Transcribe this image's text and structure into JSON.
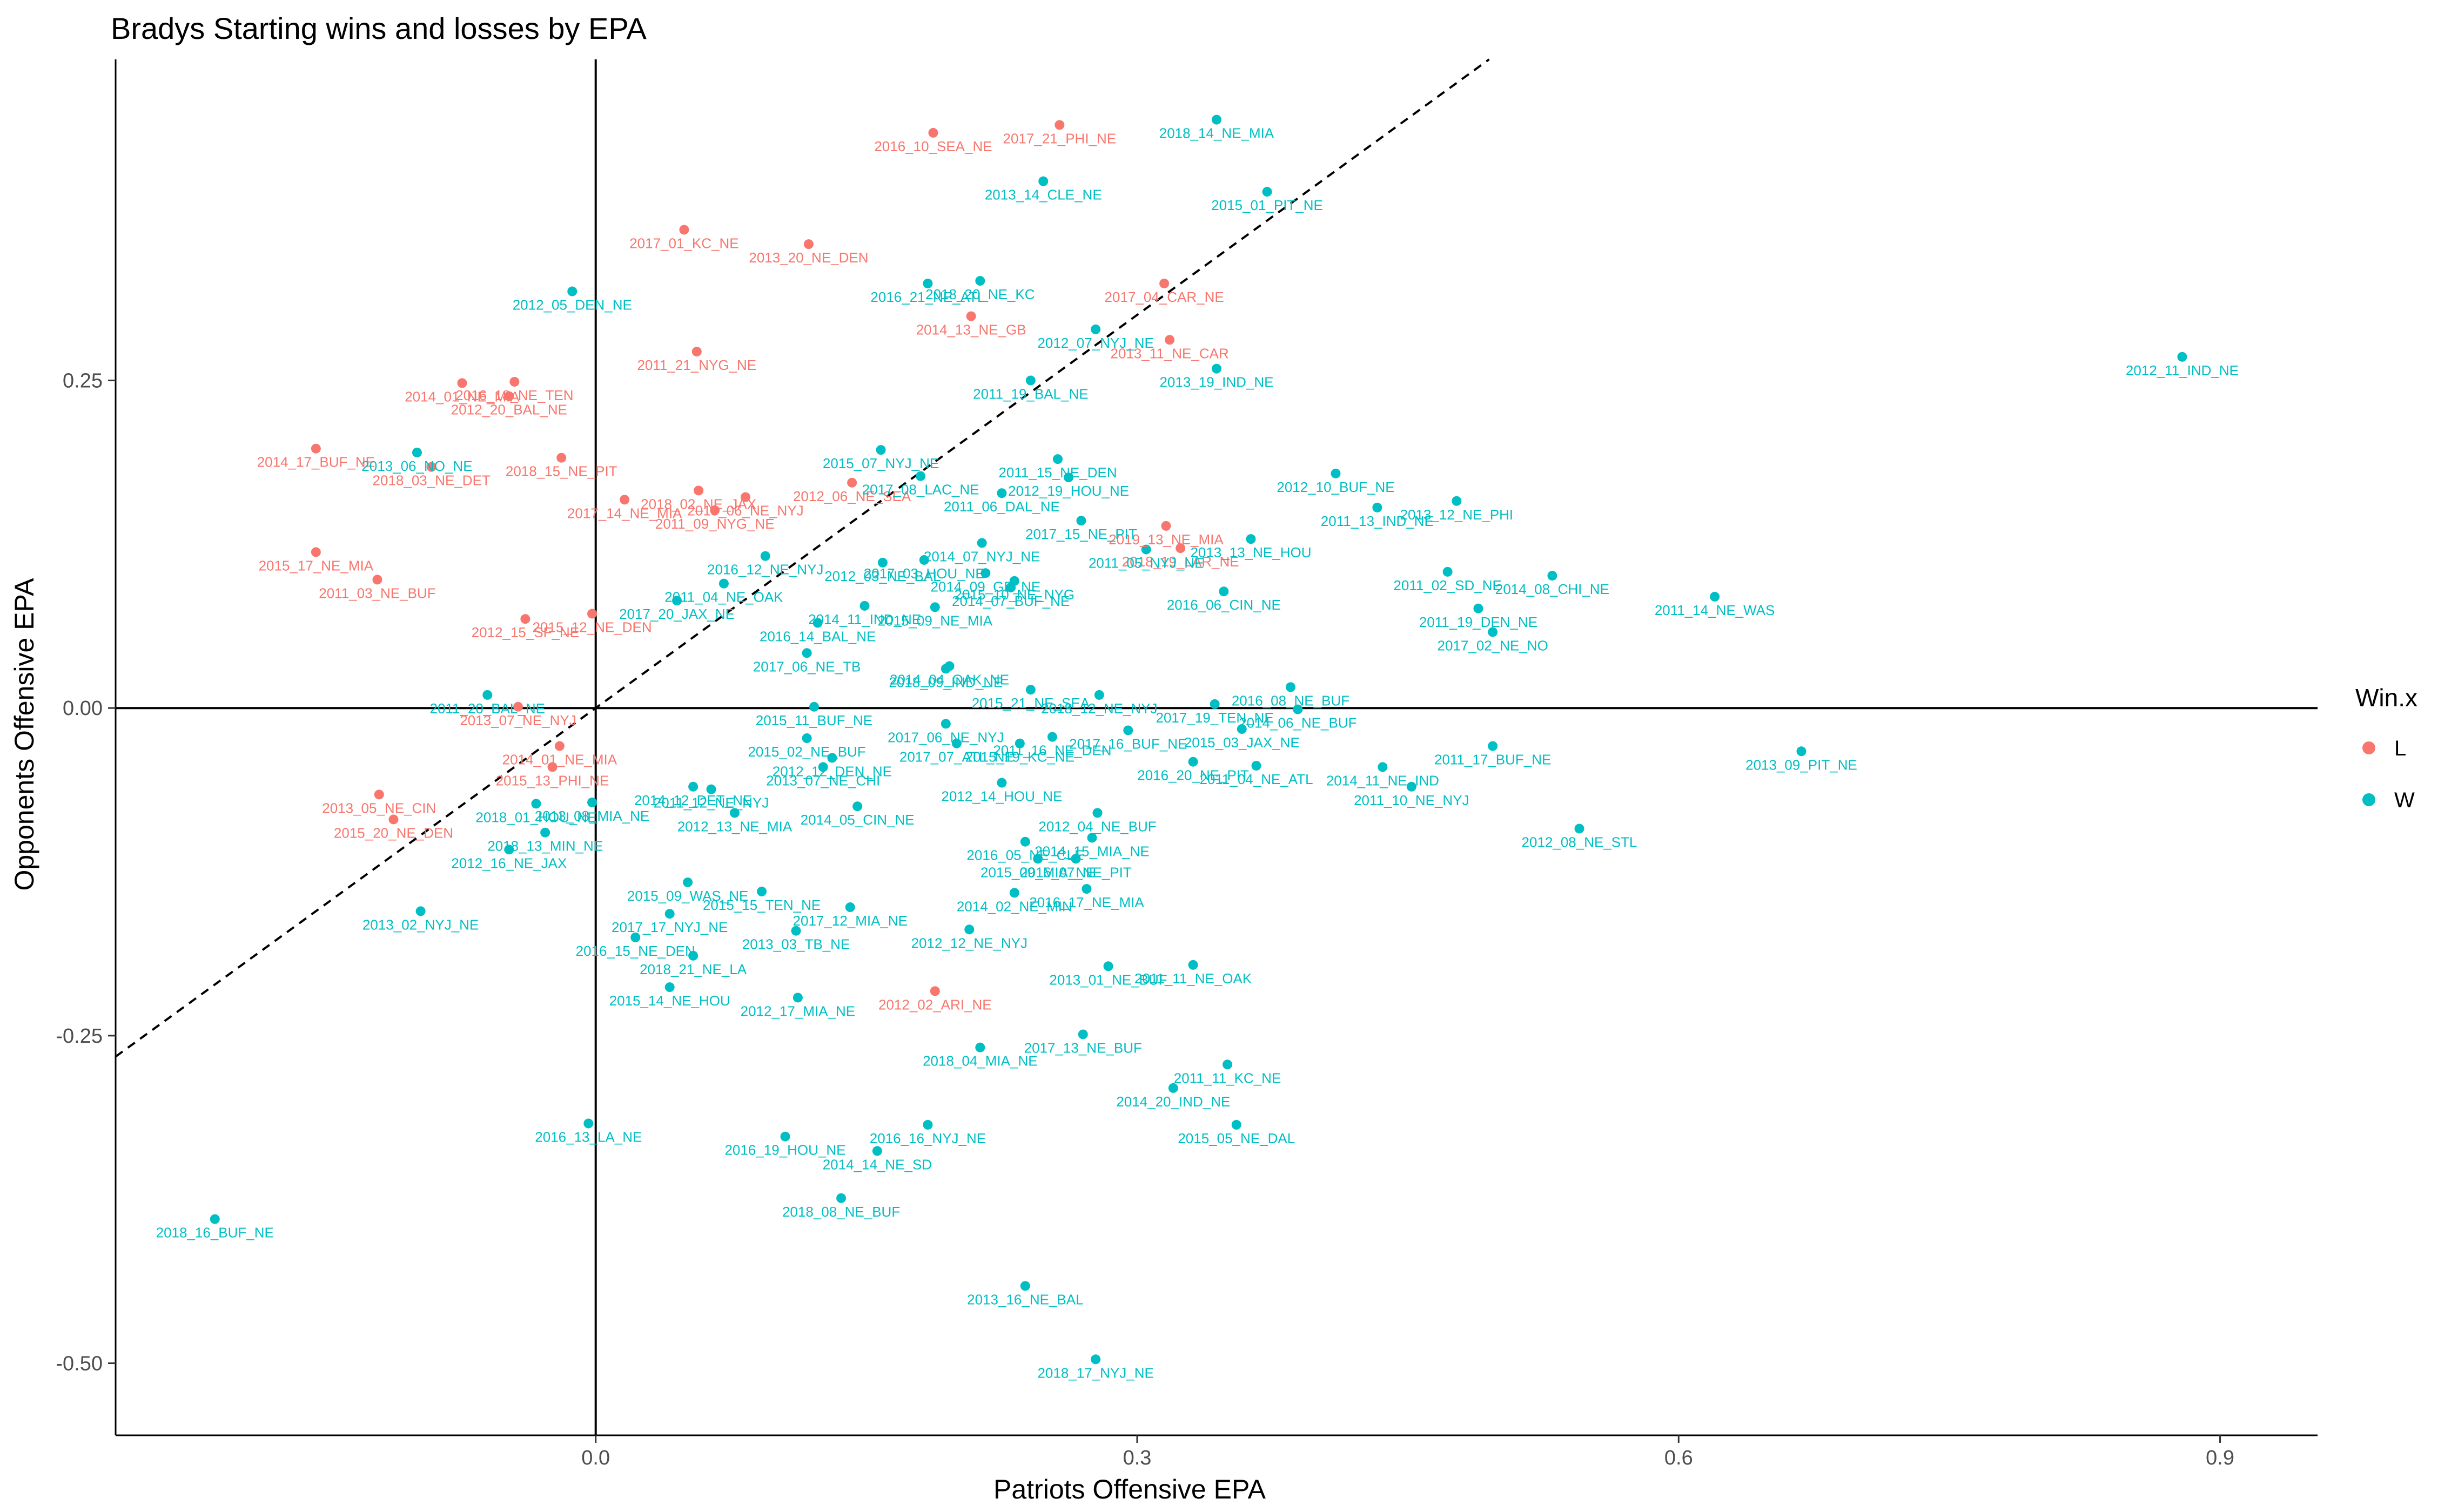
{
  "chart_data": {
    "type": "scatter",
    "title": "Bradys Starting wins and losses by EPA",
    "xlabel": "Patriots Offensive EPA",
    "ylabel": "Opponents Offensive EPA",
    "xlim": [
      -0.266,
      0.954
    ],
    "ylim": [
      -0.555,
      0.495
    ],
    "x_ticks": [
      0.0,
      0.3,
      0.6,
      0.9
    ],
    "x_tick_labels": [
      "0.0",
      "0.3",
      "0.6",
      "0.9"
    ],
    "y_ticks": [
      -0.5,
      -0.25,
      0.0,
      0.25
    ],
    "y_tick_labels": [
      "-0.50",
      "-0.25",
      "0.00",
      "0.25"
    ],
    "grid": false,
    "reference_lines": {
      "vertical_x": 0,
      "horizontal_y": 0,
      "diagonal": "y = x (dashed)"
    },
    "legend": {
      "title": "Win.x",
      "position": "right",
      "entries": [
        {
          "key": "L",
          "label": "L",
          "color": "#F8766D"
        },
        {
          "key": "W",
          "label": "W",
          "color": "#00BFC4"
        }
      ]
    },
    "points": [
      {
        "label": "2016_10_SEA_NE",
        "x": 0.187,
        "y": 0.439,
        "group": "L"
      },
      {
        "label": "2017_21_PHI_NE",
        "x": 0.257,
        "y": 0.445,
        "group": "L"
      },
      {
        "label": "2017_01_KC_NE",
        "x": 0.049,
        "y": 0.365,
        "group": "L"
      },
      {
        "label": "2013_20_NE_DEN",
        "x": 0.118,
        "y": 0.354,
        "group": "L"
      },
      {
        "label": "2017_04_CAR_NE",
        "x": 0.315,
        "y": 0.324,
        "group": "L"
      },
      {
        "label": "2014_13_NE_GB",
        "x": 0.208,
        "y": 0.299,
        "group": "L"
      },
      {
        "label": "2013_11_NE_CAR",
        "x": 0.318,
        "y": 0.281,
        "group": "L"
      },
      {
        "label": "2011_21_NYG_NE",
        "x": 0.056,
        "y": 0.272,
        "group": "L"
      },
      {
        "label": "2014_01_NE_MIA",
        "x": -0.074,
        "y": 0.248,
        "group": "L"
      },
      {
        "label": "2016_18_NE_TEN",
        "x": -0.045,
        "y": 0.249,
        "group": "L"
      },
      {
        "label": "2012_20_BAL_NE",
        "x": -0.048,
        "y": 0.238,
        "group": "L"
      },
      {
        "label": "2014_17_BUF_NE",
        "x": -0.155,
        "y": 0.198,
        "group": "L"
      },
      {
        "label": "2018_03_NE_DET",
        "x": -0.091,
        "y": 0.184,
        "group": "L"
      },
      {
        "label": "2018_15_NE_PIT",
        "x": -0.019,
        "y": 0.191,
        "group": "L"
      },
      {
        "label": "2012_06_NE_SEA",
        "x": 0.142,
        "y": 0.172,
        "group": "L"
      },
      {
        "label": "2017_14_NE_MIA",
        "x": 0.016,
        "y": 0.159,
        "group": "L"
      },
      {
        "label": "2018_02_NE_JAX",
        "x": 0.057,
        "y": 0.166,
        "group": "L"
      },
      {
        "label": "2013_06_NE_NYJ",
        "x": 0.083,
        "y": 0.161,
        "group": "L"
      },
      {
        "label": "2011_09_NYG_NE",
        "x": 0.066,
        "y": 0.151,
        "group": "L"
      },
      {
        "label": "2019_13_NE_MIA",
        "x": 0.316,
        "y": 0.139,
        "group": "L"
      },
      {
        "label": "2018_19_LAR_NE",
        "x": 0.324,
        "y": 0.122,
        "group": "L"
      },
      {
        "label": "2015_17_NE_MIA",
        "x": -0.155,
        "y": 0.119,
        "group": "L"
      },
      {
        "label": "2011_03_NE_BUF",
        "x": -0.121,
        "y": 0.098,
        "group": "L"
      },
      {
        "label": "2012_15_SF_NE",
        "x": -0.039,
        "y": 0.068,
        "group": "L"
      },
      {
        "label": "2015_12_NE_DEN",
        "x": -0.002,
        "y": 0.072,
        "group": "L"
      },
      {
        "label": "2013_07_NE_NYJ",
        "x": -0.043,
        "y": 0.001,
        "group": "L"
      },
      {
        "label": "2014_01_NE_MIA",
        "x": -0.02,
        "y": -0.029,
        "group": "L"
      },
      {
        "label": "2015_13_PHI_NE",
        "x": -0.024,
        "y": -0.045,
        "group": "L"
      },
      {
        "label": "2013_05_NE_CIN",
        "x": -0.12,
        "y": -0.066,
        "group": "L"
      },
      {
        "label": "2015_20_NE_DEN",
        "x": -0.112,
        "y": -0.085,
        "group": "L"
      },
      {
        "label": "2012_02_ARI_NE",
        "x": 0.188,
        "y": -0.216,
        "group": "L"
      },
      {
        "label": "2018_14_NE_MIA",
        "x": 0.344,
        "y": 0.449,
        "group": "W"
      },
      {
        "label": "2013_14_CLE_NE",
        "x": 0.248,
        "y": 0.402,
        "group": "W"
      },
      {
        "label": "2015_01_PIT_NE",
        "x": 0.372,
        "y": 0.394,
        "group": "W"
      },
      {
        "label": "2012_05_DEN_NE",
        "x": -0.013,
        "y": 0.318,
        "group": "W"
      },
      {
        "label": "2016_21_NE_ATL",
        "x": 0.184,
        "y": 0.324,
        "group": "W"
      },
      {
        "label": "2018_20_NE_KC",
        "x": 0.213,
        "y": 0.326,
        "group": "W"
      },
      {
        "label": "2012_07_NYJ_NE",
        "x": 0.277,
        "y": 0.289,
        "group": "W"
      },
      {
        "label": "2013_19_IND_NE",
        "x": 0.344,
        "y": 0.259,
        "group": "W"
      },
      {
        "label": "2011_19_BAL_NE",
        "x": 0.241,
        "y": 0.25,
        "group": "W"
      },
      {
        "label": "2012_11_IND_NE",
        "x": 0.879,
        "y": 0.268,
        "group": "W"
      },
      {
        "label": "2013_06_NO_NE",
        "x": -0.099,
        "y": 0.195,
        "group": "W"
      },
      {
        "label": "2015_07_NYJ_NE",
        "x": 0.158,
        "y": 0.197,
        "group": "W"
      },
      {
        "label": "2011_15_NE_DEN",
        "x": 0.256,
        "y": 0.19,
        "group": "W"
      },
      {
        "label": "2017_08_LAC_NE",
        "x": 0.18,
        "y": 0.177,
        "group": "W"
      },
      {
        "label": "2012_19_HOU_NE",
        "x": 0.262,
        "y": 0.176,
        "group": "W"
      },
      {
        "label": "2011_06_DAL_NE",
        "x": 0.225,
        "y": 0.164,
        "group": "W"
      },
      {
        "label": "2012_10_BUF_NE",
        "x": 0.41,
        "y": 0.179,
        "group": "W"
      },
      {
        "label": "2011_13_IND_NE",
        "x": 0.433,
        "y": 0.153,
        "group": "W"
      },
      {
        "label": "2013_12_NE_PHI",
        "x": 0.477,
        "y": 0.158,
        "group": "W"
      },
      {
        "label": "2017_15_NE_PIT",
        "x": 0.269,
        "y": 0.143,
        "group": "W"
      },
      {
        "label": "2014_07_NYJ_NE",
        "x": 0.214,
        "y": 0.126,
        "group": "W"
      },
      {
        "label": "2011_05_NYJ_NE",
        "x": 0.305,
        "y": 0.121,
        "group": "W"
      },
      {
        "label": "2013_13_NE_HOU",
        "x": 0.363,
        "y": 0.129,
        "group": "W"
      },
      {
        "label": "2016_12_NE_NYJ",
        "x": 0.094,
        "y": 0.116,
        "group": "W"
      },
      {
        "label": "2017_03_HOU_NE",
        "x": 0.182,
        "y": 0.113,
        "group": "W"
      },
      {
        "label": "2012_03_NE_BAL",
        "x": 0.159,
        "y": 0.111,
        "group": "W"
      },
      {
        "label": "2014_09_GB_NE",
        "x": 0.216,
        "y": 0.103,
        "group": "W"
      },
      {
        "label": "2015_10_NE_NYG",
        "x": 0.232,
        "y": 0.097,
        "group": "W"
      },
      {
        "label": "2014_07_BUF_NE",
        "x": 0.23,
        "y": 0.092,
        "group": "W"
      },
      {
        "label": "2011_02_SD_NE",
        "x": 0.472,
        "y": 0.104,
        "group": "W"
      },
      {
        "label": "2014_08_CHI_NE",
        "x": 0.53,
        "y": 0.101,
        "group": "W"
      },
      {
        "label": "2011_19_DEN_NE",
        "x": 0.489,
        "y": 0.076,
        "group": "W"
      },
      {
        "label": "2017_02_NE_NO",
        "x": 0.497,
        "y": 0.058,
        "group": "W"
      },
      {
        "label": "2011_14_NE_WAS",
        "x": 0.62,
        "y": 0.085,
        "group": "W"
      },
      {
        "label": "2016_06_CIN_NE",
        "x": 0.348,
        "y": 0.089,
        "group": "W"
      },
      {
        "label": "2011_04_NE_OAK",
        "x": 0.071,
        "y": 0.095,
        "group": "W"
      },
      {
        "label": "2017_20_JAX_NE",
        "x": 0.045,
        "y": 0.082,
        "group": "W"
      },
      {
        "label": "2015_09_NE_MIA",
        "x": 0.188,
        "y": 0.077,
        "group": "W"
      },
      {
        "label": "2014_11_IND_NE",
        "x": 0.149,
        "y": 0.078,
        "group": "W"
      },
      {
        "label": "2016_14_BAL_NE",
        "x": 0.123,
        "y": 0.065,
        "group": "W"
      },
      {
        "label": "2017_06_NE_TB",
        "x": 0.117,
        "y": 0.042,
        "group": "W"
      },
      {
        "label": "2018_09_IND_NE",
        "x": 0.194,
        "y": 0.03,
        "group": "W"
      },
      {
        "label": "2014_04_OAK_NE",
        "x": 0.196,
        "y": 0.032,
        "group": "W"
      },
      {
        "label": "2015_21_NE_SEA",
        "x": 0.241,
        "y": 0.014,
        "group": "W"
      },
      {
        "label": "2018_12_NE_NYJ",
        "x": 0.279,
        "y": 0.01,
        "group": "W"
      },
      {
        "label": "2016_08_NE_BUF",
        "x": 0.385,
        "y": 0.016,
        "group": "W"
      },
      {
        "label": "2017_19_TEN_NE",
        "x": 0.343,
        "y": 0.003,
        "group": "W"
      },
      {
        "label": "2014_06_NE_BUF",
        "x": 0.389,
        "y": -0.001,
        "group": "W"
      },
      {
        "label": "2011_20_BAL_NE",
        "x": -0.06,
        "y": 0.01,
        "group": "W"
      },
      {
        "label": "2015_11_BUF_NE",
        "x": 0.121,
        "y": 0.001,
        "group": "W"
      },
      {
        "label": "2017_06_NE_NYJ",
        "x": 0.194,
        "y": -0.012,
        "group": "W"
      },
      {
        "label": "2015_03_JAX_NE",
        "x": 0.358,
        "y": -0.016,
        "group": "W"
      },
      {
        "label": "2017_16_BUF_NE",
        "x": 0.295,
        "y": -0.017,
        "group": "W"
      },
      {
        "label": "2011_16_NE_DEN",
        "x": 0.253,
        "y": -0.022,
        "group": "W"
      },
      {
        "label": "2015_19_KC_NE",
        "x": 0.235,
        "y": -0.027,
        "group": "W"
      },
      {
        "label": "2017_07_ATL_NE",
        "x": 0.2,
        "y": -0.027,
        "group": "W"
      },
      {
        "label": "2015_02_NE_BUF",
        "x": 0.117,
        "y": -0.023,
        "group": "W"
      },
      {
        "label": "2011_17_BUF_NE",
        "x": 0.497,
        "y": -0.029,
        "group": "W"
      },
      {
        "label": "2013_09_PIT_NE",
        "x": 0.668,
        "y": -0.033,
        "group": "W"
      },
      {
        "label": "2012_12_DEN_NE",
        "x": 0.131,
        "y": -0.038,
        "group": "W"
      },
      {
        "label": "2013_07_NE_CHI",
        "x": 0.126,
        "y": -0.045,
        "group": "W"
      },
      {
        "label": "2016_20_NE_PIT",
        "x": 0.331,
        "y": -0.041,
        "group": "W"
      },
      {
        "label": "2011_04_NE_ATL",
        "x": 0.366,
        "y": -0.044,
        "group": "W"
      },
      {
        "label": "2014_11_NE_IND",
        "x": 0.436,
        "y": -0.045,
        "group": "W"
      },
      {
        "label": "2011_10_NE_NYJ",
        "x": 0.452,
        "y": -0.06,
        "group": "W"
      },
      {
        "label": "2012_14_HOU_NE",
        "x": 0.225,
        "y": -0.057,
        "group": "W"
      },
      {
        "label": "2012_08_NE_STL",
        "x": 0.545,
        "y": -0.092,
        "group": "W"
      },
      {
        "label": "2013_08_MIA_NE",
        "x": -0.002,
        "y": -0.072,
        "group": "W"
      },
      {
        "label": "2014_12_DET_NE",
        "x": 0.054,
        "y": -0.06,
        "group": "W"
      },
      {
        "label": "2011_12_NE_NYJ",
        "x": 0.064,
        "y": -0.062,
        "group": "W"
      },
      {
        "label": "2018_01_HOU_NE",
        "x": -0.033,
        "y": -0.073,
        "group": "W"
      },
      {
        "label": "2012_13_NE_MIA",
        "x": 0.077,
        "y": -0.08,
        "group": "W"
      },
      {
        "label": "2014_05_CIN_NE",
        "x": 0.145,
        "y": -0.075,
        "group": "W"
      },
      {
        "label": "2012_04_NE_BUF",
        "x": 0.278,
        "y": -0.08,
        "group": "W"
      },
      {
        "label": "2016_05_NE_CLE",
        "x": 0.238,
        "y": -0.102,
        "group": "W"
      },
      {
        "label": "2014_15_MIA_NE",
        "x": 0.275,
        "y": -0.099,
        "group": "W"
      },
      {
        "label": "2018_13_MIN_NE",
        "x": -0.028,
        "y": -0.095,
        "group": "W"
      },
      {
        "label": "2012_16_NE_JAX",
        "x": -0.048,
        "y": -0.108,
        "group": "W"
      },
      {
        "label": "2015_09_MIA_NE",
        "x": 0.245,
        "y": -0.115,
        "group": "W"
      },
      {
        "label": "2016_07_NE_PIT",
        "x": 0.266,
        "y": -0.115,
        "group": "W"
      },
      {
        "label": "2015_09_WAS_NE",
        "x": 0.051,
        "y": -0.133,
        "group": "W"
      },
      {
        "label": "2015_15_TEN_NE",
        "x": 0.092,
        "y": -0.14,
        "group": "W"
      },
      {
        "label": "2014_02_NE_MIN",
        "x": 0.232,
        "y": -0.141,
        "group": "W"
      },
      {
        "label": "2016_17_NE_MIA",
        "x": 0.272,
        "y": -0.138,
        "group": "W"
      },
      {
        "label": "2017_12_MIA_NE",
        "x": 0.141,
        "y": -0.152,
        "group": "W"
      },
      {
        "label": "2017_17_NYJ_NE",
        "x": 0.041,
        "y": -0.157,
        "group": "W"
      },
      {
        "label": "2013_02_NYJ_NE",
        "x": -0.097,
        "y": -0.155,
        "group": "W"
      },
      {
        "label": "2013_03_TB_NE",
        "x": 0.111,
        "y": -0.17,
        "group": "W"
      },
      {
        "label": "2012_12_NE_NYJ",
        "x": 0.207,
        "y": -0.169,
        "group": "W"
      },
      {
        "label": "2016_15_NE_DEN",
        "x": 0.022,
        "y": -0.175,
        "group": "W"
      },
      {
        "label": "2018_21_NE_LA",
        "x": 0.054,
        "y": -0.189,
        "group": "W"
      },
      {
        "label": "2013_01_NE_BUF",
        "x": 0.284,
        "y": -0.197,
        "group": "W"
      },
      {
        "label": "2011_11_NE_OAK",
        "x": 0.331,
        "y": -0.196,
        "group": "W"
      },
      {
        "label": "2015_14_NE_HOU",
        "x": 0.041,
        "y": -0.213,
        "group": "W"
      },
      {
        "label": "2012_17_MIA_NE",
        "x": 0.112,
        "y": -0.221,
        "group": "W"
      },
      {
        "label": "2017_13_NE_BUF",
        "x": 0.27,
        "y": -0.249,
        "group": "W"
      },
      {
        "label": "2018_04_MIA_NE",
        "x": 0.213,
        "y": -0.259,
        "group": "W"
      },
      {
        "label": "2011_11_KC_NE",
        "x": 0.35,
        "y": -0.272,
        "group": "W"
      },
      {
        "label": "2014_20_IND_NE",
        "x": 0.32,
        "y": -0.29,
        "group": "W"
      },
      {
        "label": "2015_05_NE_DAL",
        "x": 0.355,
        "y": -0.318,
        "group": "W"
      },
      {
        "label": "2016_13_LA_NE",
        "x": -0.004,
        "y": -0.317,
        "group": "W"
      },
      {
        "label": "2016_16_NYJ_NE",
        "x": 0.184,
        "y": -0.318,
        "group": "W"
      },
      {
        "label": "2016_19_HOU_NE",
        "x": 0.105,
        "y": -0.327,
        "group": "W"
      },
      {
        "label": "2014_14_NE_SD",
        "x": 0.156,
        "y": -0.338,
        "group": "W"
      },
      {
        "label": "2018_08_NE_BUF",
        "x": 0.136,
        "y": -0.374,
        "group": "W"
      },
      {
        "label": "2018_16_BUF_NE",
        "x": -0.211,
        "y": -0.39,
        "group": "W"
      },
      {
        "label": "2013_16_NE_BAL",
        "x": 0.238,
        "y": -0.441,
        "group": "W"
      },
      {
        "label": "2018_17_NYJ_NE",
        "x": 0.277,
        "y": -0.497,
        "group": "W"
      }
    ]
  }
}
